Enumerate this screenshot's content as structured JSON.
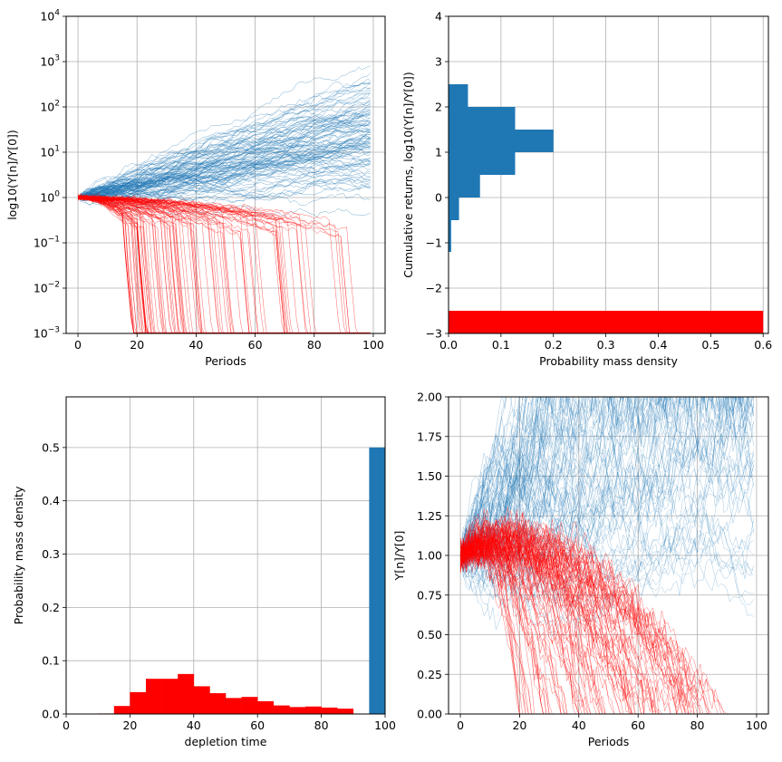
{
  "colors": {
    "survive": "#1f77b4",
    "deplete": "#ff0000",
    "grid": "#b0b0b0"
  },
  "chart_data": [
    {
      "id": "paths-log",
      "type": "line",
      "xlabel": "Periods",
      "ylabel": "log10(Y[n]/Y[0])",
      "xlim": [
        -4,
        104
      ],
      "ylim_log10": [
        -3,
        4
      ],
      "yscale": "log",
      "xticks": [
        0,
        20,
        40,
        60,
        80,
        100
      ],
      "yticks": [
        {
          "base": "10",
          "exp": "−3"
        },
        {
          "base": "10",
          "exp": "−2"
        },
        {
          "base": "10",
          "exp": "−1"
        },
        {
          "base": "10",
          "exp": "0"
        },
        {
          "base": "10",
          "exp": "1"
        },
        {
          "base": "10",
          "exp": "2"
        },
        {
          "base": "10",
          "exp": "3"
        },
        {
          "base": "10",
          "exp": "4"
        }
      ],
      "grid": true,
      "series_count": {
        "survive": 100,
        "deplete": 100
      },
      "periods": 100,
      "final_log10_survive": [
        -0.6,
        2.6
      ],
      "depletion_periods": [
        19,
        95
      ]
    },
    {
      "id": "final-hist",
      "type": "bar",
      "orientation": "horizontal",
      "xlabel": "Probability mass density",
      "ylabel": "Cumulative returns, log10(Y[n]/Y[0])",
      "xlim": [
        0,
        0.61
      ],
      "ylim": [
        -3,
        4
      ],
      "xticks": [
        "0.0",
        "0.1",
        "0.2",
        "0.3",
        "0.4",
        "0.5",
        "0.6"
      ],
      "yticks": [
        "−3",
        "−2",
        "−1",
        "0",
        "1",
        "2",
        "3",
        "4"
      ],
      "grid": true,
      "bins_survive": [
        {
          "y0": -1.2,
          "y1": -0.5,
          "value": 0.005
        },
        {
          "y0": -0.5,
          "y1": 0.0,
          "value": 0.02
        },
        {
          "y0": 0.0,
          "y1": 0.5,
          "value": 0.06
        },
        {
          "y0": 0.5,
          "y1": 1.0,
          "value": 0.127
        },
        {
          "y0": 1.0,
          "y1": 1.5,
          "value": 0.2
        },
        {
          "y0": 1.5,
          "y1": 2.0,
          "value": 0.127
        },
        {
          "y0": 2.0,
          "y1": 2.5,
          "value": 0.037
        }
      ],
      "bins_deplete": [
        {
          "y0": -3.0,
          "y1": -2.5,
          "value": 0.6
        }
      ]
    },
    {
      "id": "depletion-hist",
      "type": "bar",
      "xlabel": "depletion time",
      "ylabel": "Probability mass density",
      "xlim": [
        0,
        100
      ],
      "ylim": [
        0,
        0.595
      ],
      "xticks": [
        "0",
        "20",
        "40",
        "60",
        "80",
        "100"
      ],
      "yticks": [
        "0.0",
        "0.1",
        "0.2",
        "0.3",
        "0.4",
        "0.5"
      ],
      "grid": true,
      "bin_width": 5,
      "bins_deplete": [
        {
          "x": 10,
          "value": 0.001
        },
        {
          "x": 15,
          "value": 0.015
        },
        {
          "x": 20,
          "value": 0.041
        },
        {
          "x": 25,
          "value": 0.066
        },
        {
          "x": 30,
          "value": 0.066
        },
        {
          "x": 35,
          "value": 0.075
        },
        {
          "x": 40,
          "value": 0.052
        },
        {
          "x": 45,
          "value": 0.039
        },
        {
          "x": 50,
          "value": 0.03
        },
        {
          "x": 55,
          "value": 0.032
        },
        {
          "x": 60,
          "value": 0.024
        },
        {
          "x": 65,
          "value": 0.016
        },
        {
          "x": 70,
          "value": 0.013
        },
        {
          "x": 75,
          "value": 0.014
        },
        {
          "x": 80,
          "value": 0.012
        },
        {
          "x": 85,
          "value": 0.01
        }
      ],
      "bins_survive": [
        {
          "x": 95,
          "value": 0.5
        }
      ]
    },
    {
      "id": "paths-linear",
      "type": "line",
      "xlabel": "Periods",
      "ylabel": "Y[n]/Y[0]",
      "xlim": [
        -4,
        104
      ],
      "ylim": [
        0,
        2
      ],
      "xticks": [
        "0",
        "20",
        "40",
        "60",
        "80",
        "100"
      ],
      "yticks": [
        "0.00",
        "0.25",
        "0.50",
        "0.75",
        "1.00",
        "1.25",
        "1.50",
        "1.75",
        "2.00"
      ],
      "grid": true,
      "series_count": {
        "survive": 100,
        "deplete": 100
      },
      "periods": 100
    }
  ]
}
